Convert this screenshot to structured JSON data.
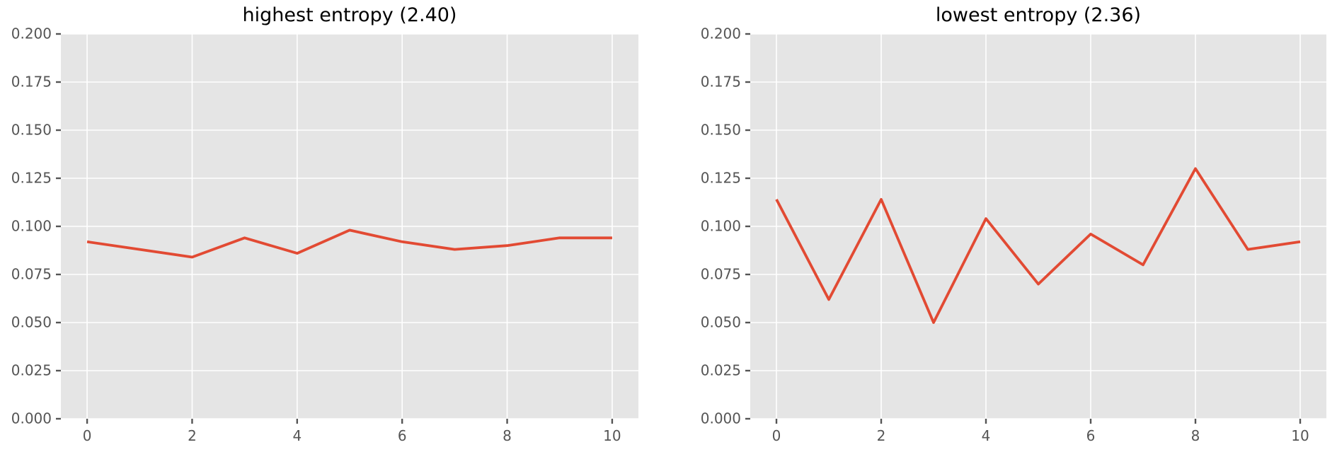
{
  "figure": {
    "background": "#ffffff"
  },
  "chart_data": [
    {
      "type": "line",
      "title": "highest entropy (2.40)",
      "x": [
        0,
        1,
        2,
        3,
        4,
        5,
        6,
        7,
        8,
        9,
        10
      ],
      "values": [
        0.092,
        0.088,
        0.084,
        0.094,
        0.086,
        0.098,
        0.092,
        0.088,
        0.09,
        0.094,
        0.094
      ],
      "xlim": [
        -0.5,
        10.5
      ],
      "ylim": [
        0,
        0.2
      ],
      "xticks": [
        0,
        2,
        4,
        6,
        8,
        10
      ],
      "xtick_labels": [
        "0",
        "2",
        "4",
        "6",
        "8",
        "10"
      ],
      "yticks": [
        0,
        0.025,
        0.05,
        0.075,
        0.1,
        0.125,
        0.15,
        0.175,
        0.2
      ],
      "ytick_labels": [
        "0.000",
        "0.025",
        "0.050",
        "0.075",
        "0.100",
        "0.125",
        "0.150",
        "0.175",
        "0.200"
      ],
      "xlabel": "",
      "ylabel": "",
      "grid": true,
      "legend": null,
      "line_color": "#E24A33",
      "panel_color": "#E5E5E5",
      "grid_color": "#FFFFFF",
      "tick_color": "#555555"
    },
    {
      "type": "line",
      "title": "lowest entropy (2.36)",
      "x": [
        0,
        1,
        2,
        3,
        4,
        5,
        6,
        7,
        8,
        9,
        10
      ],
      "values": [
        0.114,
        0.062,
        0.114,
        0.05,
        0.104,
        0.07,
        0.096,
        0.08,
        0.13,
        0.088,
        0.092
      ],
      "xlim": [
        -0.5,
        10.5
      ],
      "ylim": [
        0,
        0.2
      ],
      "xticks": [
        0,
        2,
        4,
        6,
        8,
        10
      ],
      "xtick_labels": [
        "0",
        "2",
        "4",
        "6",
        "8",
        "10"
      ],
      "yticks": [
        0,
        0.025,
        0.05,
        0.075,
        0.1,
        0.125,
        0.15,
        0.175,
        0.2
      ],
      "ytick_labels": [
        "0.000",
        "0.025",
        "0.050",
        "0.075",
        "0.100",
        "0.125",
        "0.150",
        "0.175",
        "0.200"
      ],
      "xlabel": "",
      "ylabel": "",
      "grid": true,
      "legend": null,
      "line_color": "#E24A33",
      "panel_color": "#E5E5E5",
      "grid_color": "#FFFFFF",
      "tick_color": "#555555"
    }
  ]
}
